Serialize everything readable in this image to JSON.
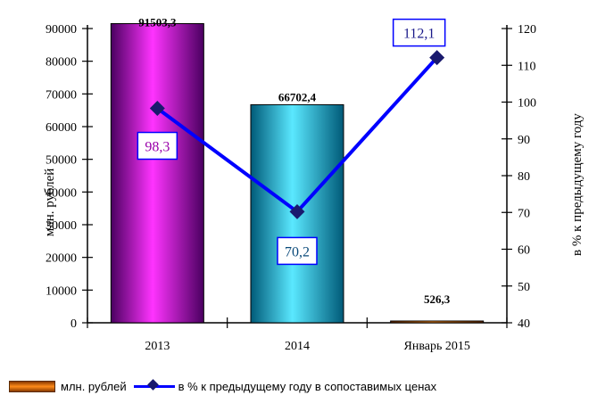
{
  "chart_data": {
    "type": "bar+line",
    "categories": [
      "2013",
      "2014",
      "Январь 2015"
    ],
    "series": [
      {
        "name": "млн. рублей",
        "type": "bar",
        "axis": "left",
        "values": [
          91503.3,
          66702.4,
          526.3
        ],
        "labels": [
          "91503,3",
          "66702,4",
          "526,3"
        ],
        "colors": [
          "#b000c0",
          "#1ab8d8",
          "#e05a00"
        ]
      },
      {
        "name": "в % к предыдущему году в сопоставимых ценах",
        "type": "line",
        "axis": "right",
        "values": [
          98.3,
          70.2,
          112.1
        ],
        "labels": [
          "98,3",
          "70,2",
          "112,1"
        ],
        "color": "#0000ff",
        "marker_color": "#1a1a6e"
      }
    ],
    "left_axis": {
      "label": "млн. рублей",
      "range": [
        0,
        90000
      ],
      "ticks": [
        "0",
        "10000",
        "20000",
        "30000",
        "40000",
        "50000",
        "60000",
        "70000",
        "80000",
        "90000"
      ]
    },
    "right_axis": {
      "label": "в % к предыдущему году",
      "range": [
        40,
        120
      ],
      "ticks": [
        "40",
        "50",
        "60",
        "70",
        "80",
        "90",
        "100",
        "110",
        "120"
      ]
    },
    "legend": {
      "placement": "bottom",
      "items": [
        "млн. рублей",
        "в % к предыдущему году в сопоставимых ценах"
      ]
    },
    "grid": false
  }
}
